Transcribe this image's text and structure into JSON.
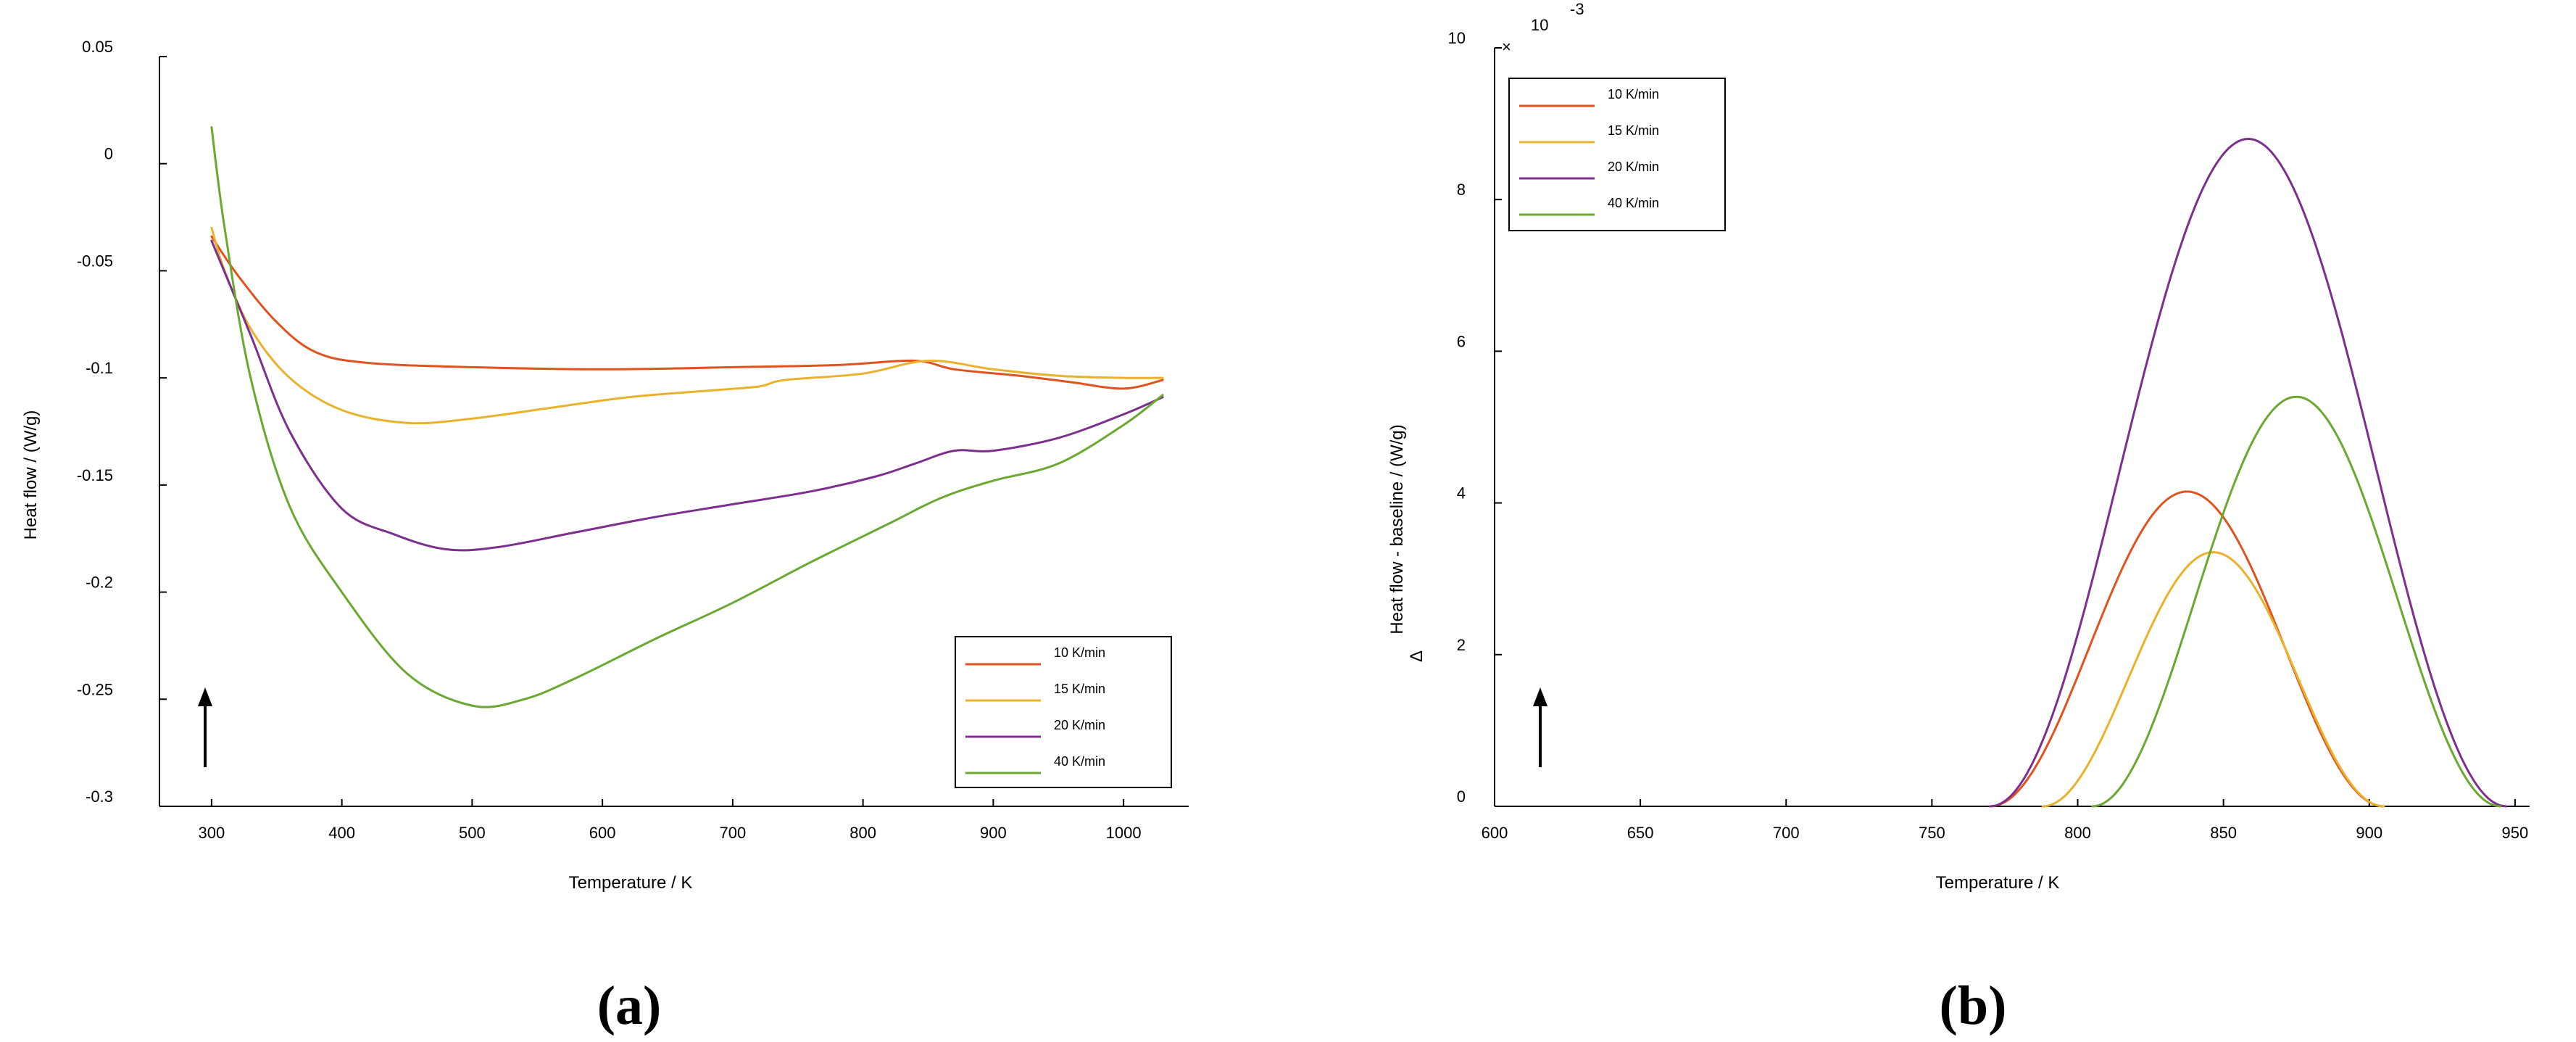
{
  "chart_data": [
    {
      "type": "line",
      "panel_label": "(a)",
      "xlabel": "Temperature / K",
      "ylabel": "Heat flow / (W/g)",
      "xlim": [
        260,
        1050
      ],
      "ylim": [
        -0.3,
        0.05
      ],
      "xticks": [
        300,
        400,
        500,
        600,
        700,
        800,
        900,
        1000
      ],
      "yticks": [
        0.05,
        0,
        -0.05,
        -0.1,
        -0.15,
        -0.2,
        -0.25,
        -0.3
      ],
      "ytick_labels": [
        "0.05",
        "0",
        "-0.05",
        "-0.1",
        "-0.15",
        "-0.2",
        "-0.25",
        "-0.3"
      ],
      "grid": false,
      "legend_position": "bottom-right",
      "annotation": "upward arrow (endothermic up)",
      "series": [
        {
          "name": "10 K/min",
          "color": "#e0521e",
          "points": [
            [
              300,
              -0.034
            ],
            [
              320,
              -0.052
            ],
            [
              350,
              -0.074
            ],
            [
              380,
              -0.088
            ],
            [
              420,
              -0.093
            ],
            [
              500,
              -0.095
            ],
            [
              600,
              -0.096
            ],
            [
              700,
              -0.095
            ],
            [
              780,
              -0.094
            ],
            [
              840,
              -0.092
            ],
            [
              870,
              -0.096
            ],
            [
              920,
              -0.099
            ],
            [
              960,
              -0.102
            ],
            [
              1000,
              -0.105
            ],
            [
              1030,
              -0.101
            ]
          ]
        },
        {
          "name": "15 K/min",
          "color": "#eab12b",
          "points": [
            [
              300,
              -0.03
            ],
            [
              310,
              -0.05
            ],
            [
              330,
              -0.077
            ],
            [
              360,
              -0.1
            ],
            [
              400,
              -0.115
            ],
            [
              450,
              -0.121
            ],
            [
              500,
              -0.119
            ],
            [
              560,
              -0.114
            ],
            [
              620,
              -0.109
            ],
            [
              680,
              -0.106
            ],
            [
              720,
              -0.104
            ],
            [
              740,
              -0.101
            ],
            [
              800,
              -0.098
            ],
            [
              850,
              -0.092
            ],
            [
              900,
              -0.096
            ],
            [
              950,
              -0.099
            ],
            [
              1000,
              -0.1
            ],
            [
              1030,
              -0.1
            ]
          ]
        },
        {
          "name": "20 K/min",
          "color": "#7d2f8d",
          "points": [
            [
              300,
              -0.036
            ],
            [
              330,
              -0.08
            ],
            [
              360,
              -0.125
            ],
            [
              400,
              -0.161
            ],
            [
              440,
              -0.173
            ],
            [
              480,
              -0.18
            ],
            [
              520,
              -0.179
            ],
            [
              580,
              -0.172
            ],
            [
              640,
              -0.165
            ],
            [
              700,
              -0.159
            ],
            [
              760,
              -0.153
            ],
            [
              810,
              -0.146
            ],
            [
              840,
              -0.14
            ],
            [
              870,
              -0.134
            ],
            [
              900,
              -0.134
            ],
            [
              950,
              -0.128
            ],
            [
              1000,
              -0.117
            ],
            [
              1030,
              -0.109
            ]
          ]
        },
        {
          "name": "40 K/min",
          "color": "#6aa830",
          "points": [
            [
              300,
              0.017
            ],
            [
              310,
              -0.03
            ],
            [
              330,
              -0.1
            ],
            [
              360,
              -0.16
            ],
            [
              400,
              -0.2
            ],
            [
              450,
              -0.238
            ],
            [
              500,
              -0.253
            ],
            [
              540,
              -0.25
            ],
            [
              580,
              -0.24
            ],
            [
              640,
              -0.222
            ],
            [
              700,
              -0.205
            ],
            [
              760,
              -0.186
            ],
            [
              820,
              -0.168
            ],
            [
              860,
              -0.156
            ],
            [
              900,
              -0.148
            ],
            [
              950,
              -0.14
            ],
            [
              1000,
              -0.122
            ],
            [
              1030,
              -0.108
            ]
          ]
        }
      ]
    },
    {
      "type": "line",
      "panel_label": "(b)",
      "xlabel": "Temperature / K",
      "ylabel": "Heat flow - baseline / (W/g)",
      "ylabel_prefix": "∆",
      "scale_multiplier": "10",
      "scale_exponent": "-3",
      "xlim": [
        600,
        955
      ],
      "ylim": [
        0,
        10
      ],
      "xticks": [
        600,
        650,
        700,
        750,
        800,
        850,
        900,
        950
      ],
      "yticks": [
        0,
        2,
        4,
        6,
        8,
        10
      ],
      "grid": false,
      "legend_position": "top-left",
      "annotation": "upward arrow (endothermic up)",
      "series": [
        {
          "name": "10 K/min",
          "color": "#e0521e",
          "peak": 4.15,
          "center": 840,
          "range": [
            770,
            905
          ]
        },
        {
          "name": "15 K/min",
          "color": "#eab12b",
          "peak": 3.35,
          "center": 855,
          "range": [
            788,
            905
          ]
        },
        {
          "name": "20 K/min",
          "color": "#7d2f8d",
          "peak": 8.8,
          "center": 860,
          "range": [
            770,
            947
          ]
        },
        {
          "name": "40 K/min",
          "color": "#6aa830",
          "peak": 5.4,
          "center": 876,
          "range": [
            805,
            945
          ]
        }
      ]
    }
  ]
}
